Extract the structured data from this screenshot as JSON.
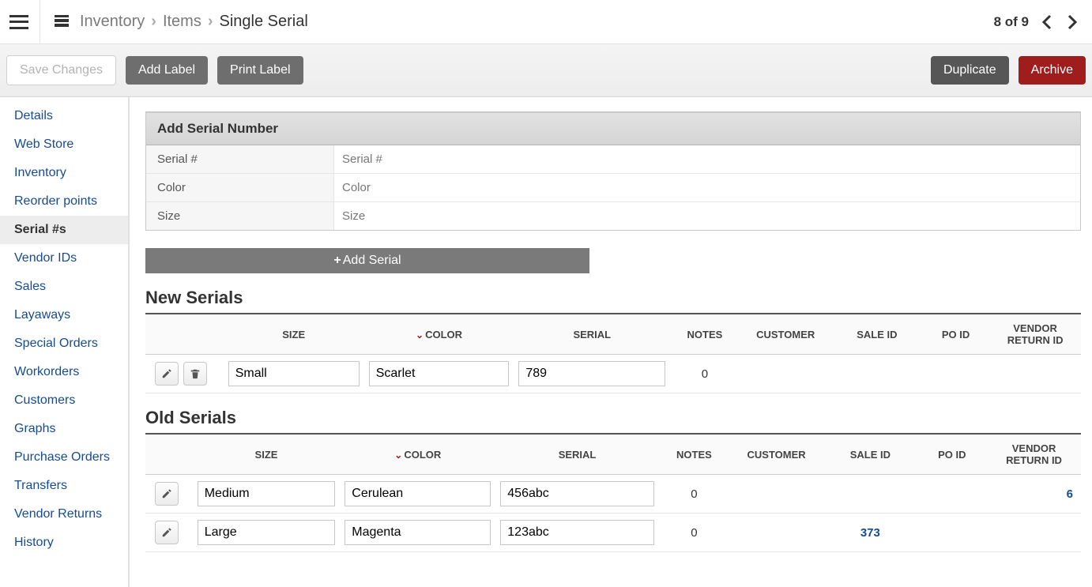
{
  "breadcrumb": {
    "root": "Inventory",
    "mid": "Items",
    "current": "Single Serial"
  },
  "pager": {
    "text": "8 of 9"
  },
  "actions": {
    "save": "Save Changes",
    "add_label": "Add Label",
    "print_label": "Print Label",
    "duplicate": "Duplicate",
    "archive": "Archive"
  },
  "sidebar": {
    "items": [
      {
        "label": "Details"
      },
      {
        "label": "Web Store"
      },
      {
        "label": "Inventory"
      },
      {
        "label": "Reorder points"
      },
      {
        "label": "Serial #s",
        "active": true
      },
      {
        "label": "Vendor IDs"
      },
      {
        "label": "Sales"
      },
      {
        "label": "Layaways"
      },
      {
        "label": "Special Orders"
      },
      {
        "label": "Workorders"
      },
      {
        "label": "Customers"
      },
      {
        "label": "Graphs"
      },
      {
        "label": "Purchase Orders"
      },
      {
        "label": "Transfers"
      },
      {
        "label": "Vendor Returns"
      },
      {
        "label": "History"
      }
    ]
  },
  "panel": {
    "title": "Add Serial Number",
    "rows": {
      "serial": {
        "label": "Serial #",
        "placeholder": "Serial #"
      },
      "color": {
        "label": "Color",
        "placeholder": "Color"
      },
      "size": {
        "label": "Size",
        "placeholder": "Size"
      }
    },
    "add_btn": "Add Serial"
  },
  "sections": {
    "new_title": "New Serials",
    "old_title": "Old Serials"
  },
  "columns": {
    "size": "SIZE",
    "color": "COLOR",
    "serial": "SERIAL",
    "notes": "NOTES",
    "customer": "CUSTOMER",
    "sale_id": "SALE ID",
    "po_id": "PO ID",
    "vendor_return_id": "VENDOR RETURN ID"
  },
  "new_serials": [
    {
      "size": "Small",
      "color": "Scarlet",
      "serial": "789",
      "notes": "0",
      "customer": "",
      "sale_id": "",
      "po_id": "",
      "vendor_return_id": ""
    }
  ],
  "old_serials": [
    {
      "size": "Medium",
      "color": "Cerulean",
      "serial": "456abc",
      "notes": "0",
      "customer": "",
      "sale_id": "",
      "po_id": "",
      "vendor_return_id": "6"
    },
    {
      "size": "Large",
      "color": "Magenta",
      "serial": "123abc",
      "notes": "0",
      "customer": "",
      "sale_id": "373",
      "po_id": "",
      "vendor_return_id": ""
    }
  ],
  "colors": {
    "link": "#164b93",
    "danger": "#a01d1d",
    "gray_btn": "#6e6e6e",
    "dark_btn": "#565656"
  }
}
